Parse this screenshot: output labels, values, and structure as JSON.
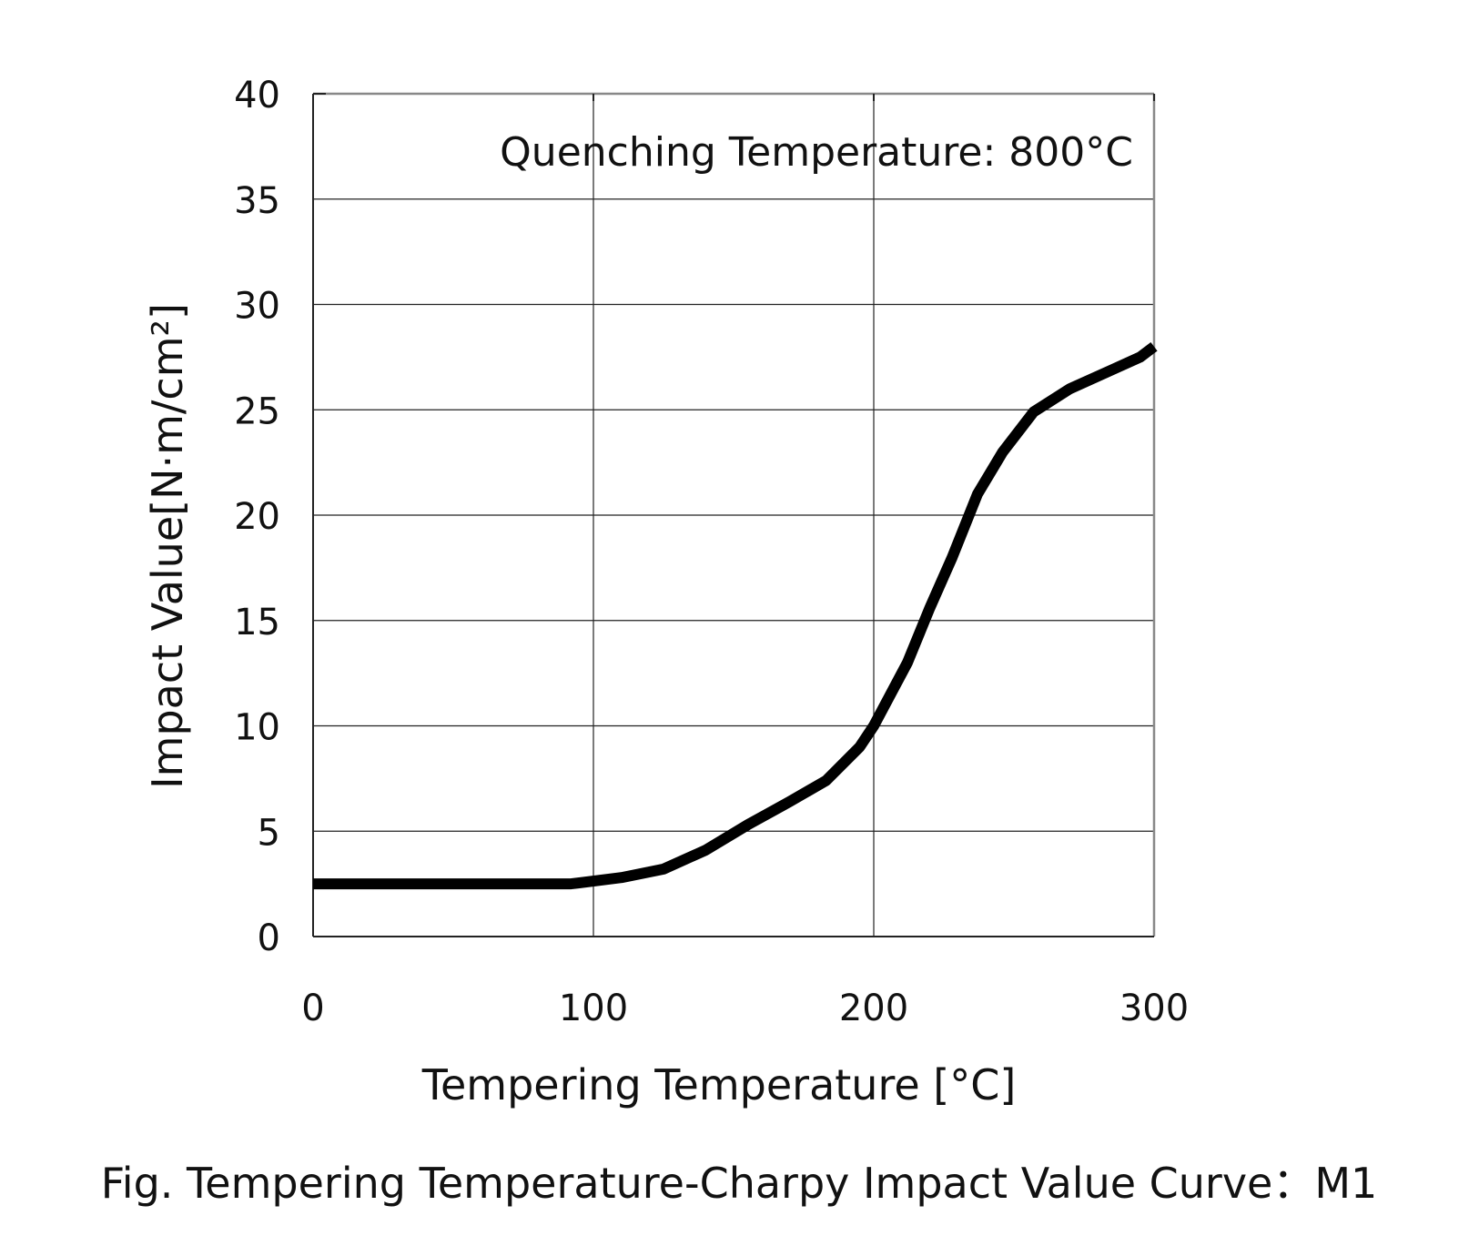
{
  "chart_data": {
    "type": "line",
    "xlabel": "Tempering Temperature [°C]",
    "ylabel": "Impact Value[N·m/cm²]",
    "annotation": "Quenching Temperature: 800°C",
    "caption": "Fig. Tempering Temperature-Charpy Impact Value Curve：M1",
    "xlim": [
      0,
      300
    ],
    "ylim": [
      0,
      40
    ],
    "x_ticks": [
      "0",
      "100",
      "200",
      "300"
    ],
    "y_ticks": [
      "0",
      "5",
      "10",
      "15",
      "20",
      "25",
      "30",
      "35",
      "40"
    ],
    "x_tick_values": [
      0,
      100,
      200,
      300
    ],
    "y_tick_values": [
      0,
      5,
      10,
      15,
      20,
      25,
      30,
      35,
      40
    ],
    "grid": true,
    "series": [
      {
        "x": [
          0,
          50,
          92,
          110,
          125,
          140,
          155,
          170,
          183,
          195,
          200,
          212,
          220,
          228,
          237,
          246,
          257,
          270,
          285,
          295,
          300
        ],
        "y": [
          2.5,
          2.5,
          2.5,
          2.8,
          3.2,
          4.1,
          5.3,
          6.4,
          7.4,
          9.0,
          10.0,
          13.0,
          15.6,
          18.0,
          21.0,
          23.0,
          24.9,
          26.0,
          26.9,
          27.5,
          28.0
        ],
        "color": "#000000"
      }
    ]
  }
}
